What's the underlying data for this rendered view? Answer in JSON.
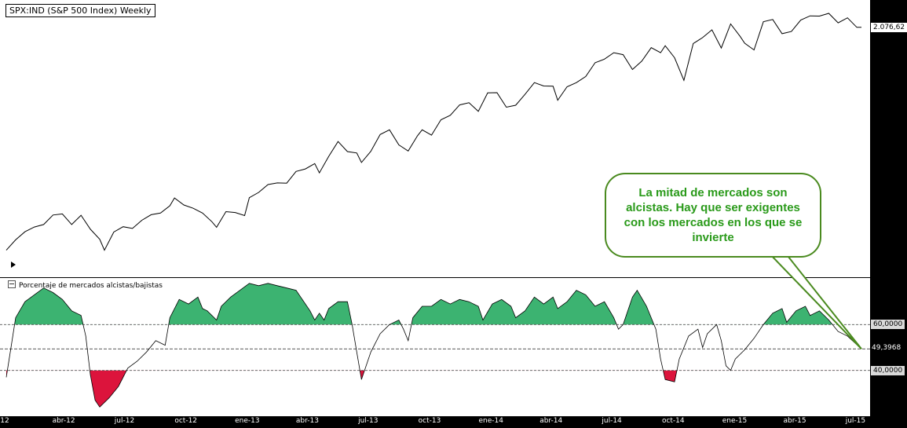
{
  "chart_data": {
    "type": "line",
    "price_panel": {
      "title": "SPX:IND (S&P 500 Index) Weekly",
      "last_value_label": "2.076,62",
      "y_range": [
        1260,
        2140
      ],
      "series": [
        {
          "week": "2012-01-06",
          "v": 1278
        },
        {
          "week": "2012-01-20",
          "v": 1315
        },
        {
          "week": "2012-02-03",
          "v": 1344
        },
        {
          "week": "2012-02-17",
          "v": 1361
        },
        {
          "week": "2012-03-02",
          "v": 1370
        },
        {
          "week": "2012-03-16",
          "v": 1404
        },
        {
          "week": "2012-03-30",
          "v": 1408
        },
        {
          "week": "2012-04-13",
          "v": 1370
        },
        {
          "week": "2012-04-27",
          "v": 1403
        },
        {
          "week": "2012-05-11",
          "v": 1353
        },
        {
          "week": "2012-05-25",
          "v": 1317
        },
        {
          "week": "2012-06-01",
          "v": 1278
        },
        {
          "week": "2012-06-15",
          "v": 1343
        },
        {
          "week": "2012-06-29",
          "v": 1362
        },
        {
          "week": "2012-07-13",
          "v": 1356
        },
        {
          "week": "2012-07-27",
          "v": 1385
        },
        {
          "week": "2012-08-10",
          "v": 1405
        },
        {
          "week": "2012-08-24",
          "v": 1411
        },
        {
          "week": "2012-09-07",
          "v": 1437
        },
        {
          "week": "2012-09-14",
          "v": 1465
        },
        {
          "week": "2012-09-28",
          "v": 1440
        },
        {
          "week": "2012-10-12",
          "v": 1428
        },
        {
          "week": "2012-10-26",
          "v": 1411
        },
        {
          "week": "2012-11-09",
          "v": 1380
        },
        {
          "week": "2012-11-16",
          "v": 1360
        },
        {
          "week": "2012-11-30",
          "v": 1416
        },
        {
          "week": "2012-12-14",
          "v": 1413
        },
        {
          "week": "2012-12-28",
          "v": 1402
        },
        {
          "week": "2013-01-04",
          "v": 1466
        },
        {
          "week": "2013-01-18",
          "v": 1485
        },
        {
          "week": "2013-02-01",
          "v": 1513
        },
        {
          "week": "2013-02-15",
          "v": 1519
        },
        {
          "week": "2013-03-01",
          "v": 1518
        },
        {
          "week": "2013-03-15",
          "v": 1560
        },
        {
          "week": "2013-03-29",
          "v": 1569
        },
        {
          "week": "2013-04-12",
          "v": 1588
        },
        {
          "week": "2013-04-19",
          "v": 1555
        },
        {
          "week": "2013-05-03",
          "v": 1614
        },
        {
          "week": "2013-05-17",
          "v": 1667
        },
        {
          "week": "2013-05-31",
          "v": 1631
        },
        {
          "week": "2013-06-14",
          "v": 1626
        },
        {
          "week": "2013-06-21",
          "v": 1592
        },
        {
          "week": "2013-07-05",
          "v": 1632
        },
        {
          "week": "2013-07-19",
          "v": 1692
        },
        {
          "week": "2013-08-02",
          "v": 1709
        },
        {
          "week": "2013-08-16",
          "v": 1655
        },
        {
          "week": "2013-08-30",
          "v": 1633
        },
        {
          "week": "2013-09-13",
          "v": 1688
        },
        {
          "week": "2013-09-20",
          "v": 1709
        },
        {
          "week": "2013-10-04",
          "v": 1690
        },
        {
          "week": "2013-10-18",
          "v": 1745
        },
        {
          "week": "2013-11-01",
          "v": 1761
        },
        {
          "week": "2013-11-15",
          "v": 1798
        },
        {
          "week": "2013-11-29",
          "v": 1806
        },
        {
          "week": "2013-12-13",
          "v": 1775
        },
        {
          "week": "2013-12-27",
          "v": 1841
        },
        {
          "week": "2014-01-10",
          "v": 1842
        },
        {
          "week": "2014-01-24",
          "v": 1790
        },
        {
          "week": "2014-02-07",
          "v": 1797
        },
        {
          "week": "2014-02-21",
          "v": 1836
        },
        {
          "week": "2014-03-07",
          "v": 1878
        },
        {
          "week": "2014-03-21",
          "v": 1866
        },
        {
          "week": "2014-04-04",
          "v": 1865
        },
        {
          "week": "2014-04-11",
          "v": 1815
        },
        {
          "week": "2014-04-25",
          "v": 1863
        },
        {
          "week": "2014-05-09",
          "v": 1878
        },
        {
          "week": "2014-05-23",
          "v": 1900
        },
        {
          "week": "2014-06-06",
          "v": 1949
        },
        {
          "week": "2014-06-20",
          "v": 1962
        },
        {
          "week": "2014-07-04",
          "v": 1985
        },
        {
          "week": "2014-07-18",
          "v": 1978
        },
        {
          "week": "2014-08-01",
          "v": 1925
        },
        {
          "week": "2014-08-15",
          "v": 1955
        },
        {
          "week": "2014-08-29",
          "v": 2003
        },
        {
          "week": "2014-09-12",
          "v": 1985
        },
        {
          "week": "2014-09-19",
          "v": 2010
        },
        {
          "week": "2014-10-03",
          "v": 1967
        },
        {
          "week": "2014-10-17",
          "v": 1886
        },
        {
          "week": "2014-10-31",
          "v": 2018
        },
        {
          "week": "2014-11-14",
          "v": 2039
        },
        {
          "week": "2014-11-28",
          "v": 2067
        },
        {
          "week": "2014-12-12",
          "v": 2002
        },
        {
          "week": "2014-12-26",
          "v": 2088
        },
        {
          "week": "2015-01-09",
          "v": 2044
        },
        {
          "week": "2015-01-16",
          "v": 2019
        },
        {
          "week": "2015-01-30",
          "v": 1995
        },
        {
          "week": "2015-02-13",
          "v": 2096
        },
        {
          "week": "2015-02-27",
          "v": 2104
        },
        {
          "week": "2015-03-13",
          "v": 2053
        },
        {
          "week": "2015-03-27",
          "v": 2061
        },
        {
          "week": "2015-04-10",
          "v": 2102
        },
        {
          "week": "2015-04-24",
          "v": 2117
        },
        {
          "week": "2015-05-08",
          "v": 2116
        },
        {
          "week": "2015-05-22",
          "v": 2126
        },
        {
          "week": "2015-06-05",
          "v": 2092
        },
        {
          "week": "2015-06-19",
          "v": 2110
        },
        {
          "week": "2015-07-03",
          "v": 2076
        },
        {
          "week": "2015-07-10",
          "v": 2076
        }
      ]
    },
    "indicator_panel": {
      "title": "Porcentaje de mercados alcistas/bajistas",
      "y_range": [
        20,
        80
      ],
      "upper_level": 60,
      "lower_level": 40,
      "upper_label": "60,0000",
      "lower_label": "40,0000",
      "last_value_label": "49,3968",
      "last_value": 49.4,
      "bull_color": "#3cb371",
      "bear_color": "#dc143c",
      "series": [
        {
          "week": "2012-01-06",
          "v": 37
        },
        {
          "week": "2012-01-13",
          "v": 50
        },
        {
          "week": "2012-01-20",
          "v": 63
        },
        {
          "week": "2012-02-03",
          "v": 70
        },
        {
          "week": "2012-02-17",
          "v": 73
        },
        {
          "week": "2012-03-02",
          "v": 76
        },
        {
          "week": "2012-03-16",
          "v": 74
        },
        {
          "week": "2012-03-30",
          "v": 71
        },
        {
          "week": "2012-04-13",
          "v": 66
        },
        {
          "week": "2012-04-27",
          "v": 64
        },
        {
          "week": "2012-05-04",
          "v": 55
        },
        {
          "week": "2012-05-11",
          "v": 38
        },
        {
          "week": "2012-05-18",
          "v": 27
        },
        {
          "week": "2012-05-25",
          "v": 24
        },
        {
          "week": "2012-06-08",
          "v": 28
        },
        {
          "week": "2012-06-22",
          "v": 33
        },
        {
          "week": "2012-07-06",
          "v": 41
        },
        {
          "week": "2012-07-20",
          "v": 44
        },
        {
          "week": "2012-08-03",
          "v": 48
        },
        {
          "week": "2012-08-17",
          "v": 53
        },
        {
          "week": "2012-08-31",
          "v": 51
        },
        {
          "week": "2012-09-07",
          "v": 63
        },
        {
          "week": "2012-09-21",
          "v": 71
        },
        {
          "week": "2012-10-05",
          "v": 69
        },
        {
          "week": "2012-10-19",
          "v": 72
        },
        {
          "week": "2012-10-26",
          "v": 67
        },
        {
          "week": "2012-11-02",
          "v": 66
        },
        {
          "week": "2012-11-16",
          "v": 62
        },
        {
          "week": "2012-11-23",
          "v": 68
        },
        {
          "week": "2012-12-07",
          "v": 72
        },
        {
          "week": "2012-12-21",
          "v": 75
        },
        {
          "week": "2013-01-04",
          "v": 78
        },
        {
          "week": "2013-01-18",
          "v": 77
        },
        {
          "week": "2013-02-01",
          "v": 78
        },
        {
          "week": "2013-02-15",
          "v": 77
        },
        {
          "week": "2013-03-01",
          "v": 76
        },
        {
          "week": "2013-03-15",
          "v": 75
        },
        {
          "week": "2013-03-22",
          "v": 72
        },
        {
          "week": "2013-04-05",
          "v": 66
        },
        {
          "week": "2013-04-12",
          "v": 62
        },
        {
          "week": "2013-04-19",
          "v": 65
        },
        {
          "week": "2013-04-26",
          "v": 62
        },
        {
          "week": "2013-05-03",
          "v": 67
        },
        {
          "week": "2013-05-17",
          "v": 70
        },
        {
          "week": "2013-05-31",
          "v": 70
        },
        {
          "week": "2013-06-07",
          "v": 60
        },
        {
          "week": "2013-06-14",
          "v": 48
        },
        {
          "week": "2013-06-21",
          "v": 36
        },
        {
          "week": "2013-07-05",
          "v": 48
        },
        {
          "week": "2013-07-19",
          "v": 56
        },
        {
          "week": "2013-08-02",
          "v": 60
        },
        {
          "week": "2013-08-16",
          "v": 62
        },
        {
          "week": "2013-08-23",
          "v": 58
        },
        {
          "week": "2013-08-30",
          "v": 53
        },
        {
          "week": "2013-09-06",
          "v": 63
        },
        {
          "week": "2013-09-20",
          "v": 68
        },
        {
          "week": "2013-10-04",
          "v": 68
        },
        {
          "week": "2013-10-18",
          "v": 71
        },
        {
          "week": "2013-11-01",
          "v": 69
        },
        {
          "week": "2013-11-15",
          "v": 71
        },
        {
          "week": "2013-11-29",
          "v": 70
        },
        {
          "week": "2013-12-13",
          "v": 68
        },
        {
          "week": "2013-12-20",
          "v": 62
        },
        {
          "week": "2014-01-03",
          "v": 69
        },
        {
          "week": "2014-01-17",
          "v": 71
        },
        {
          "week": "2014-01-31",
          "v": 68
        },
        {
          "week": "2014-02-07",
          "v": 63
        },
        {
          "week": "2014-02-21",
          "v": 66
        },
        {
          "week": "2014-03-07",
          "v": 72
        },
        {
          "week": "2014-03-21",
          "v": 69
        },
        {
          "week": "2014-04-04",
          "v": 72
        },
        {
          "week": "2014-04-11",
          "v": 67
        },
        {
          "week": "2014-04-25",
          "v": 70
        },
        {
          "week": "2014-05-09",
          "v": 75
        },
        {
          "week": "2014-05-23",
          "v": 73
        },
        {
          "week": "2014-06-06",
          "v": 68
        },
        {
          "week": "2014-06-20",
          "v": 70
        },
        {
          "week": "2014-07-04",
          "v": 63
        },
        {
          "week": "2014-07-11",
          "v": 58
        },
        {
          "week": "2014-07-18",
          "v": 60
        },
        {
          "week": "2014-08-01",
          "v": 72
        },
        {
          "week": "2014-08-08",
          "v": 75
        },
        {
          "week": "2014-08-22",
          "v": 68
        },
        {
          "week": "2014-09-05",
          "v": 58
        },
        {
          "week": "2014-09-12",
          "v": 45
        },
        {
          "week": "2014-09-19",
          "v": 36
        },
        {
          "week": "2014-10-03",
          "v": 35
        },
        {
          "week": "2014-10-10",
          "v": 45
        },
        {
          "week": "2014-10-24",
          "v": 55
        },
        {
          "week": "2014-11-07",
          "v": 58
        },
        {
          "week": "2014-11-14",
          "v": 50
        },
        {
          "week": "2014-11-21",
          "v": 56
        },
        {
          "week": "2014-12-05",
          "v": 60
        },
        {
          "week": "2014-12-12",
          "v": 53
        },
        {
          "week": "2014-12-19",
          "v": 42
        },
        {
          "week": "2014-12-26",
          "v": 40
        },
        {
          "week": "2015-01-02",
          "v": 45
        },
        {
          "week": "2015-01-16",
          "v": 49
        },
        {
          "week": "2015-01-30",
          "v": 54
        },
        {
          "week": "2015-02-13",
          "v": 60
        },
        {
          "week": "2015-02-27",
          "v": 65
        },
        {
          "week": "2015-03-13",
          "v": 67
        },
        {
          "week": "2015-03-20",
          "v": 61
        },
        {
          "week": "2015-04-03",
          "v": 66
        },
        {
          "week": "2015-04-17",
          "v": 68
        },
        {
          "week": "2015-04-24",
          "v": 64
        },
        {
          "week": "2015-05-08",
          "v": 66
        },
        {
          "week": "2015-05-22",
          "v": 62
        },
        {
          "week": "2015-06-05",
          "v": 57
        },
        {
          "week": "2015-06-19",
          "v": 55
        },
        {
          "week": "2015-07-10",
          "v": 49.4
        }
      ]
    },
    "x_axis": {
      "start": "2012-01-06",
      "end": "2015-07-17",
      "ticks": [
        {
          "label": "12",
          "date": "2012-01-01"
        },
        {
          "label": "abr-12",
          "date": "2012-04-01"
        },
        {
          "label": "jul-12",
          "date": "2012-07-01"
        },
        {
          "label": "oct-12",
          "date": "2012-10-01"
        },
        {
          "label": "ene-13",
          "date": "2013-01-01"
        },
        {
          "label": "abr-13",
          "date": "2013-04-01"
        },
        {
          "label": "jul-13",
          "date": "2013-07-01"
        },
        {
          "label": "oct-13",
          "date": "2013-10-01"
        },
        {
          "label": "ene-14",
          "date": "2014-01-01"
        },
        {
          "label": "abr-14",
          "date": "2014-04-01"
        },
        {
          "label": "jul-14",
          "date": "2014-07-01"
        },
        {
          "label": "oct-14",
          "date": "2014-10-01"
        },
        {
          "label": "ene-15",
          "date": "2015-01-01"
        },
        {
          "label": "abr-15",
          "date": "2015-04-01"
        },
        {
          "label": "jul-15",
          "date": "2015-07-01"
        }
      ]
    },
    "annotation": {
      "text": "La mitad de mercados son alcistas. Hay que ser exigentes con los mercados en los que se invierte",
      "color": "#2a9a1a",
      "border_color": "#4a8a1f"
    },
    "price_line_color": "#000000"
  }
}
